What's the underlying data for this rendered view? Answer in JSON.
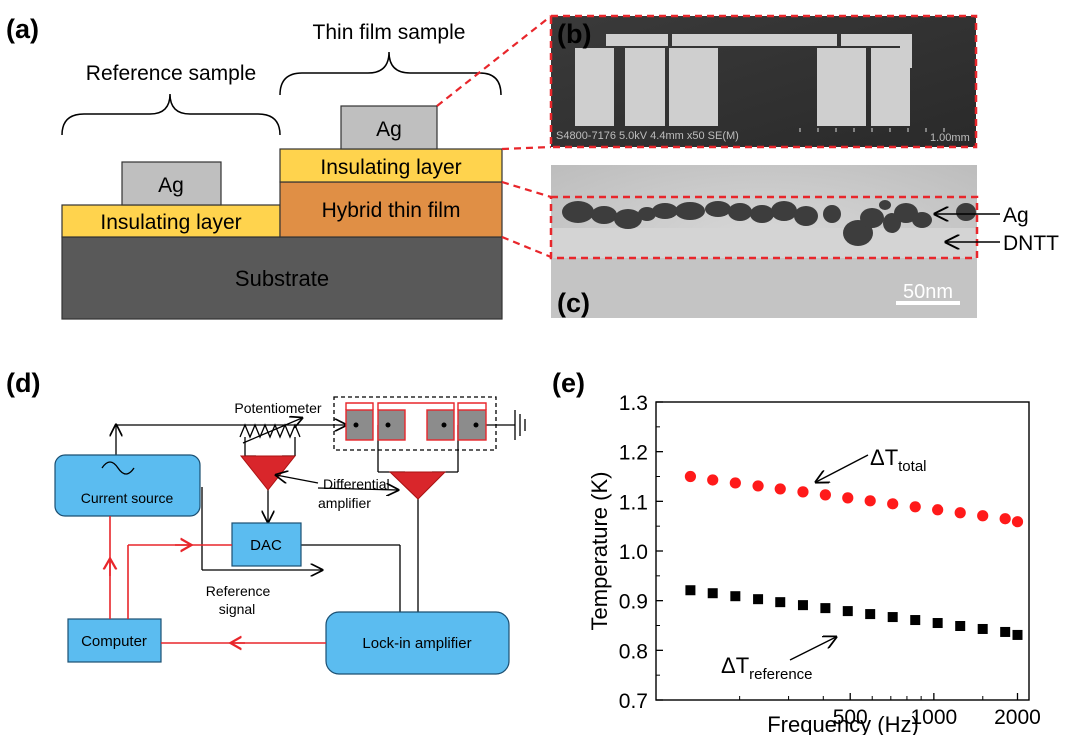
{
  "panel_labels": {
    "a": "(a)",
    "b": "(b)",
    "c": "(c)",
    "d": "(d)",
    "e": "(e)"
  },
  "panel_a": {
    "reference_sample": "Reference sample",
    "thin_film_sample": "Thin film sample",
    "ag": "Ag",
    "insulating_layer": "Insulating layer",
    "hybrid_thin_film": "Hybrid thin film",
    "substrate": "Substrate",
    "colors": {
      "insulating": "#ffd34d",
      "hybrid": "#e08f45",
      "substrate": "#595959",
      "ag": "#bfbfbf",
      "zoom": "#e8262b"
    }
  },
  "panel_b": {
    "sem_caption": "S4800-7176 5.0kV 4.4mm x50 SE(M)",
    "scale": "1.00mm"
  },
  "panel_c": {
    "ag": "Ag",
    "dntt": "DNTT",
    "scale": "50nm"
  },
  "panel_d": {
    "potentiometer": "Potentiometer",
    "differential_amplifier_1": "Differential",
    "differential_amplifier_2": "amplifier",
    "current_source": "Current source",
    "dac": "DAC",
    "reference_signal_1": "Reference",
    "reference_signal_2": "signal",
    "computer": "Computer",
    "lockin": "Lock-in amplifier",
    "colors": {
      "box": "#5bbcf0",
      "amp": "#d9262b",
      "signal": "#e8262b"
    }
  },
  "chart_data": {
    "type": "scatter",
    "xlabel": "Frequency (Hz)",
    "ylabel": "Temperature (K)",
    "x_scale": "log",
    "xlim": [
      100,
      2200
    ],
    "ylim": [
      0.7,
      1.3
    ],
    "x_ticks": [
      500,
      1000,
      2000
    ],
    "x_tick_labels": [
      "500",
      "1000",
      "2000"
    ],
    "y_ticks": [
      0.7,
      0.8,
      0.9,
      1.0,
      1.1,
      1.2,
      1.3
    ],
    "y_tick_labels": [
      "0.7",
      "0.8",
      "0.9",
      "1.0",
      "1.1",
      "1.2",
      "1.3"
    ],
    "x": [
      133,
      160,
      193,
      233,
      280,
      338,
      407,
      490,
      590,
      711,
      857,
      1032,
      1244,
      1499,
      1806,
      2000
    ],
    "series": [
      {
        "name": "total",
        "color": "#ff1a1a",
        "marker": "circle",
        "values": [
          1.15,
          1.143,
          1.137,
          1.131,
          1.125,
          1.119,
          1.113,
          1.107,
          1.101,
          1.095,
          1.089,
          1.083,
          1.077,
          1.071,
          1.065,
          1.059
        ]
      },
      {
        "name": "reference",
        "color": "#000000",
        "marker": "square",
        "values": [
          0.921,
          0.915,
          0.909,
          0.903,
          0.897,
          0.891,
          0.885,
          0.879,
          0.873,
          0.867,
          0.861,
          0.855,
          0.849,
          0.843,
          0.837,
          0.831
        ]
      }
    ],
    "annotations": [
      {
        "main": "ΔT",
        "sub": "total"
      },
      {
        "main": "ΔT",
        "sub": "reference"
      }
    ]
  }
}
